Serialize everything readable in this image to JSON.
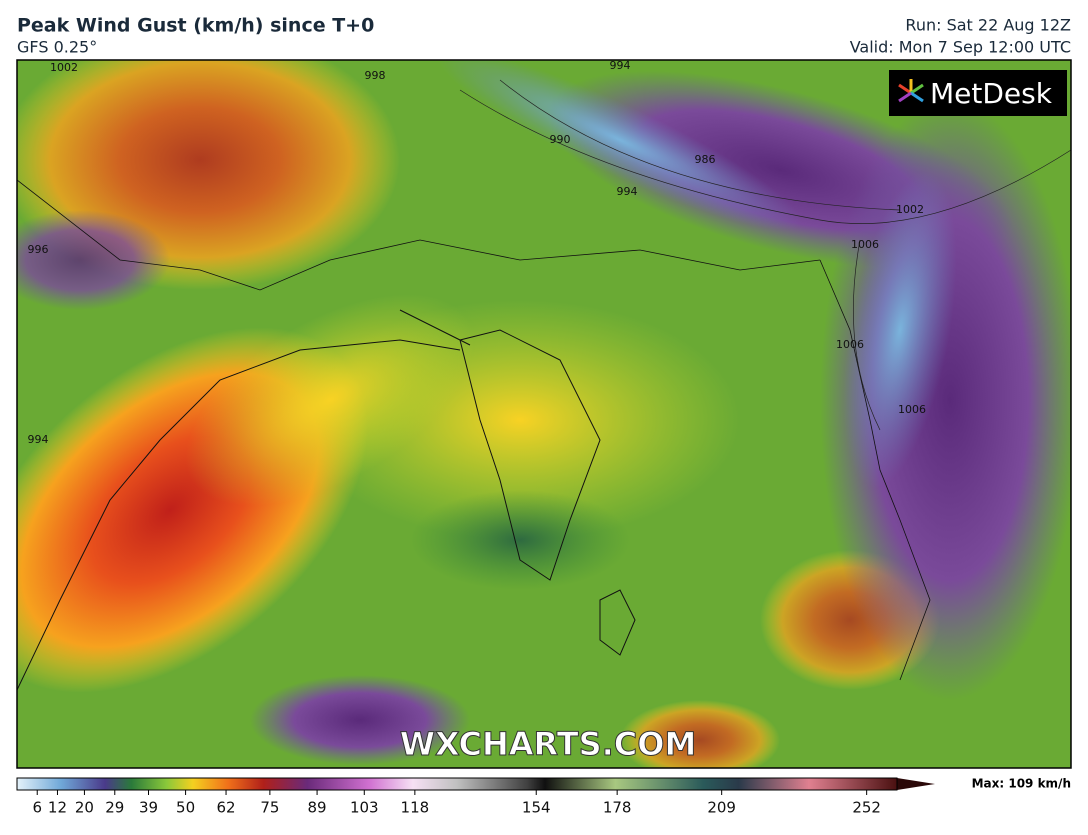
{
  "header": {
    "title": "Peak Wind Gust (km/h) since T+0",
    "model": "GFS 0.25°",
    "run": "Run: Sat 22 Aug 12Z",
    "valid": "Valid: Mon 7 Sep 12:00 UTC"
  },
  "logo": "MetDesk",
  "watermark": "WXCHARTS.COM",
  "isobar_labels": [
    "1002",
    "998",
    "994",
    "990",
    "986",
    "994",
    "1002",
    "1006",
    "1006",
    "1006",
    "996",
    "994"
  ],
  "colorbar": {
    "lim": [
      0,
      261
    ],
    "ticks": [
      6,
      12,
      20,
      29,
      39,
      50,
      62,
      75,
      89,
      103,
      118,
      154,
      178,
      209,
      252
    ],
    "max_label": "Max: 109 km/h"
  }
}
